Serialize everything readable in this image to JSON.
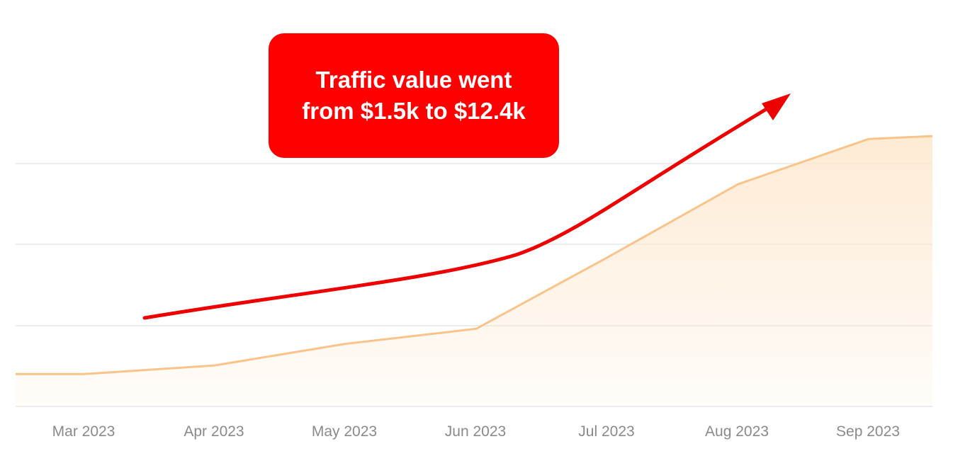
{
  "chart_data": {
    "type": "area",
    "categories": [
      "Mar 2023",
      "Apr 2023",
      "May 2023",
      "Jun 2023",
      "Jul 2023",
      "Aug 2023",
      "Sep 2023"
    ],
    "series": [
      {
        "values": [
          1.5,
          1.9,
          2.9,
          3.6,
          6.9,
          10.3,
          12.4
        ]
      }
    ],
    "annotation": {
      "line1": "Traffic value went",
      "line2": "from $1.5k to $12.4k"
    },
    "ylim": [
      0,
      15
    ],
    "grid": true,
    "colors": {
      "series_line": "#f9c38a",
      "series_fill": "#fde7cc",
      "grid": "#e6e6e6",
      "axis_label": "#8a8a8a",
      "callout_bg": "#ff0000",
      "arrow": "#ee0000"
    }
  }
}
